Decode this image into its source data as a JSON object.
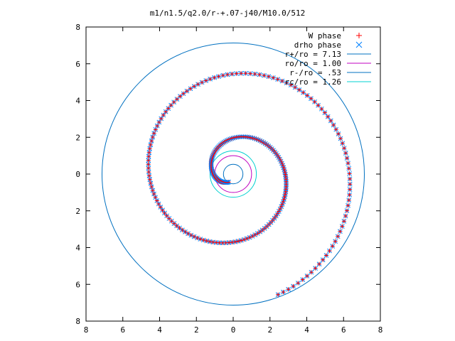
{
  "chart_data": {
    "type": "scatter",
    "title": "m1/n1.5/q2.0/r-+.07-j40/M10.0/512",
    "xlim": [
      -8,
      8
    ],
    "ylim": [
      -8,
      8
    ],
    "xticks": [
      -8,
      -6,
      -4,
      -2,
      0,
      2,
      4,
      6,
      8
    ],
    "yticks": [
      -8,
      -6,
      -4,
      -2,
      0,
      2,
      4,
      6,
      8
    ],
    "xtick_labels": [
      "8",
      "6",
      "4",
      "2",
      "0",
      "2",
      "4",
      "6",
      "8"
    ],
    "ytick_labels": [
      "8",
      "6",
      "4",
      "2",
      "0",
      "2",
      "4",
      "6",
      "8"
    ],
    "xlabel": "",
    "ylabel": "",
    "grid": false,
    "legend_position": "top-right",
    "spiral": {
      "theta_start_deg": 240,
      "r_start": 0.5,
      "r_end": 7.0,
      "turns": 3.0,
      "point_count": 260
    },
    "series": [
      {
        "name": "W phase",
        "style": "points",
        "marker": "+",
        "color": "#ff0000"
      },
      {
        "name": "drho phase",
        "style": "points",
        "marker": "x",
        "color": "#0080ff"
      },
      {
        "name": "r+/ro = 7.13",
        "style": "circle",
        "radius": 7.13,
        "color": "#0070c0"
      },
      {
        "name": "ro/ro = 1.00",
        "style": "circle",
        "radius": 1.0,
        "color": "#c000c0"
      },
      {
        "name": "r-/ro = .53",
        "style": "circle",
        "radius": 0.53,
        "color": "#0070c0"
      },
      {
        "name": "rc/ro = 1.26",
        "style": "circle",
        "radius": 1.26,
        "color": "#00d0d0"
      }
    ]
  }
}
